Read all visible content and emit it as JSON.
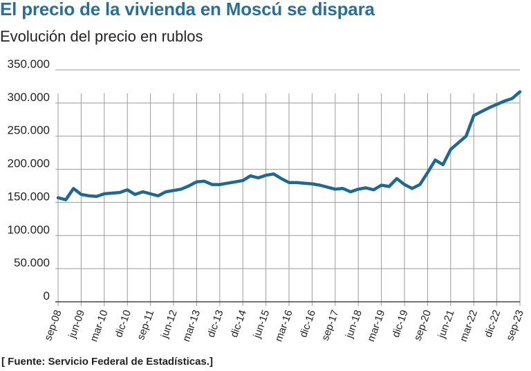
{
  "header": {
    "title": "El precio de la vivienda en Moscú se dispara",
    "subtitle": "Evolución del precio en rublos"
  },
  "footer": {
    "source": "[ Fuente: Servicio Federal de Estadísticas.]"
  },
  "colors": {
    "title": "#2a6f97",
    "line": "#1f6890",
    "grid": "#9a9a9a",
    "axis": "#444444"
  },
  "chart_data": {
    "type": "line",
    "title": "El precio de la vivienda en Moscú se dispara",
    "subtitle": "Evolución del precio en rublos",
    "xlabel": "",
    "ylabel": "",
    "ylim": [
      0,
      350000
    ],
    "yticks": [
      0,
      50000,
      100000,
      150000,
      200000,
      250000,
      300000,
      350000
    ],
    "ytick_labels": [
      "0",
      "50.000",
      "100.000",
      "150.000",
      "200.000",
      "250.000",
      "300.000",
      "350.000"
    ],
    "x_tick_labels": [
      "sep-08",
      "jun-09",
      "mar-10",
      "dic-10",
      "sep-11",
      "jun-12",
      "mar-13",
      "dic-13",
      "dic-14",
      "jun-15",
      "mar-16",
      "dic-16",
      "sep-17",
      "jun-18",
      "mar-19",
      "dic-19",
      "sep-20",
      "jun-21",
      "mar-22",
      "dic-22",
      "sep-23"
    ],
    "grid": true,
    "series": [
      {
        "values": [
          157000,
          154000,
          171000,
          162000,
          160000,
          159000,
          163000,
          164000,
          165000,
          169000,
          162000,
          166000,
          163000,
          160000,
          166000,
          168000,
          170000,
          175000,
          181000,
          182000,
          177000,
          177000,
          179000,
          181000,
          183000,
          190000,
          187000,
          191000,
          193000,
          186000,
          180000,
          180000,
          179000,
          178000,
          176000,
          173000,
          170000,
          171000,
          166000,
          170000,
          172000,
          169000,
          176000,
          174000,
          186000,
          177000,
          171000,
          177000,
          195000,
          214000,
          207000,
          230000,
          240000,
          250000,
          281000,
          287000,
          293000,
          298000,
          303000,
          307000,
          317000
        ]
      }
    ]
  }
}
